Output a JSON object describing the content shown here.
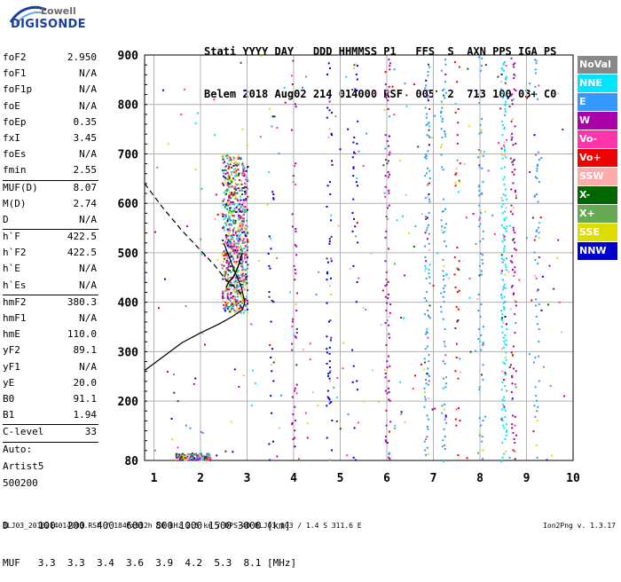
{
  "logo": {
    "line1": "Lowell",
    "line2": "DIGISONDE"
  },
  "header": {
    "line1": "Stati YYYY DAY   DDD HHMMSS P1   FFS  S  AXN PPS IGA PS",
    "line2": "Belem 2018 Aug02 214 014000 RSF  005  2  713 100 03+ C0"
  },
  "params": [
    {
      "label": "foF2",
      "value": "2.950"
    },
    {
      "label": "foF1",
      "value": "N/A"
    },
    {
      "label": "foF1p",
      "value": "N/A"
    },
    {
      "label": "foE",
      "value": "N/A"
    },
    {
      "label": "foEp",
      "value": "0.35"
    },
    {
      "label": "fxI",
      "value": "3.45"
    },
    {
      "label": "foEs",
      "value": "N/A"
    },
    {
      "label": "fmin",
      "value": "2.55"
    },
    {
      "label": "MUF(D)",
      "value": "8.07",
      "sep": true
    },
    {
      "label": "M(D)",
      "value": "2.74"
    },
    {
      "label": "D",
      "value": "N/A"
    },
    {
      "label": "h`F",
      "value": "422.5",
      "sep": true
    },
    {
      "label": "h`F2",
      "value": "422.5"
    },
    {
      "label": "h`E",
      "value": "N/A"
    },
    {
      "label": "h`Es",
      "value": "N/A"
    },
    {
      "label": "hmF2",
      "value": "380.3",
      "sep": true
    },
    {
      "label": "hmF1",
      "value": "N/A"
    },
    {
      "label": "hmE",
      "value": "110.0"
    },
    {
      "label": "yF2",
      "value": "89.1"
    },
    {
      "label": "yF1",
      "value": "N/A"
    },
    {
      "label": "yE",
      "value": "20.0"
    },
    {
      "label": "B0",
      "value": "91.1"
    },
    {
      "label": "B1",
      "value": "1.94"
    },
    {
      "label": "C-level",
      "value": "33",
      "sep": true
    }
  ],
  "autoscaling": {
    "line1": "Auto:",
    "line2": "Artist5",
    "line3": "500200"
  },
  "legend": [
    {
      "label": "NoVal",
      "color": "#888888"
    },
    {
      "label": "NNE",
      "color": "#00e5ff"
    },
    {
      "label": "E",
      "color": "#3399ff"
    },
    {
      "label": "W",
      "color": "#aa00aa"
    },
    {
      "label": "Vo-",
      "color": "#ff33aa"
    },
    {
      "label": "Vo+",
      "color": "#ee0000"
    },
    {
      "label": "SSW",
      "color": "#ffaaaa"
    },
    {
      "label": "X-",
      "color": "#006600"
    },
    {
      "label": "X+",
      "color": "#66aa55"
    },
    {
      "label": "SSE",
      "color": "#dddd00"
    },
    {
      "label": "NNW",
      "color": "#0000cc"
    }
  ],
  "chart_data": {
    "type": "scatter",
    "xlim": [
      0.8,
      10
    ],
    "ylim": [
      80,
      900
    ],
    "x_ticks": [
      "1",
      "2",
      "3",
      "4",
      "5",
      "6",
      "7",
      "8",
      "9",
      "10"
    ],
    "y_ticks": [
      "80",
      "200",
      "300",
      "400",
      "500",
      "600",
      "700",
      "800",
      "900"
    ],
    "grid": true,
    "x_tick_values": [
      1,
      2,
      3,
      4,
      5,
      6,
      7,
      8,
      9,
      10
    ],
    "y_tick_values": [
      80,
      200,
      300,
      400,
      500,
      600,
      700,
      800,
      900
    ],
    "profile_line": [
      [
        0.8,
        262
      ],
      [
        1.2,
        290
      ],
      [
        1.6,
        318
      ],
      [
        2.0,
        338
      ],
      [
        2.4,
        356
      ],
      [
        2.7,
        372
      ],
      [
        2.9,
        385
      ],
      [
        2.95,
        400
      ],
      [
        2.88,
        430
      ],
      [
        2.7,
        470
      ],
      [
        2.5,
        520
      ]
    ],
    "dashed_line": [
      [
        0.8,
        640
      ],
      [
        1.2,
        590
      ],
      [
        1.6,
        545
      ],
      [
        2.0,
        505
      ],
      [
        2.3,
        475
      ],
      [
        2.55,
        445
      ],
      [
        2.8,
        425
      ],
      [
        2.95,
        405
      ]
    ],
    "f_trace": [
      [
        2.55,
        430
      ],
      [
        2.6,
        440
      ],
      [
        2.7,
        450
      ],
      [
        2.8,
        470
      ],
      [
        2.9,
        500
      ]
    ],
    "echo_columns": [
      {
        "x": 2.6,
        "y": [
          380,
          680
        ],
        "color": "#00aa00",
        "density": 0.9
      },
      {
        "x": 2.75,
        "y": [
          380,
          700
        ],
        "color": "#dddd00",
        "density": 0.9
      },
      {
        "x": 2.9,
        "y": [
          400,
          680
        ],
        "color": "#ff33aa",
        "density": 0.8
      },
      {
        "x": 4.75,
        "y": [
          80,
          900
        ],
        "color": "#0000cc",
        "density": 0.4
      },
      {
        "x": 4.0,
        "y": [
          80,
          900
        ],
        "color": "#aa00aa",
        "density": 0.3
      },
      {
        "x": 6.0,
        "y": [
          80,
          900
        ],
        "color": "#aa00aa",
        "density": 0.55
      },
      {
        "x": 6.85,
        "y": [
          80,
          900
        ],
        "color": "#3399ff",
        "density": 0.85
      },
      {
        "x": 7.2,
        "y": [
          80,
          900
        ],
        "color": "#3399ff",
        "density": 0.55
      },
      {
        "x": 7.5,
        "y": [
          80,
          900
        ],
        "color": "#ee0000",
        "density": 0.25
      },
      {
        "x": 8.0,
        "y": [
          80,
          900
        ],
        "color": "#3399ff",
        "density": 0.45
      },
      {
        "x": 8.5,
        "y": [
          80,
          900
        ],
        "color": "#00e5ff",
        "density": 0.95
      },
      {
        "x": 8.7,
        "y": [
          80,
          900
        ],
        "color": "#aa00aa",
        "density": 0.6
      },
      {
        "x": 9.2,
        "y": [
          80,
          900
        ],
        "color": "#3399ff",
        "density": 0.3
      },
      {
        "x": 5.3,
        "y": [
          80,
          900
        ],
        "color": "#0000cc",
        "density": 0.25
      },
      {
        "x": 3.5,
        "y": [
          80,
          800
        ],
        "color": "#0000cc",
        "density": 0.25
      },
      {
        "x": 1.8,
        "y": [
          80,
          100
        ],
        "color": "#aa00aa",
        "density": 1.0
      }
    ]
  },
  "footer": {
    "row_d_label": "D",
    "row_d_values": "100  200  400  600  800 1000 1500 3000 [km]",
    "row_muf_label": "MUF",
    "row_muf_values": "3.3  3.3  3.4  3.6  3.9  4.2  5.3  8.1 [MHz]",
    "file_info": "BLJ03_2018214014000.RSF / 184fx512h 50 kHz 2.5 km / DPS-4D BLJ03 103 / 1.4 S 311.6 E",
    "version": "Ion2Png v. 1.3.17"
  }
}
